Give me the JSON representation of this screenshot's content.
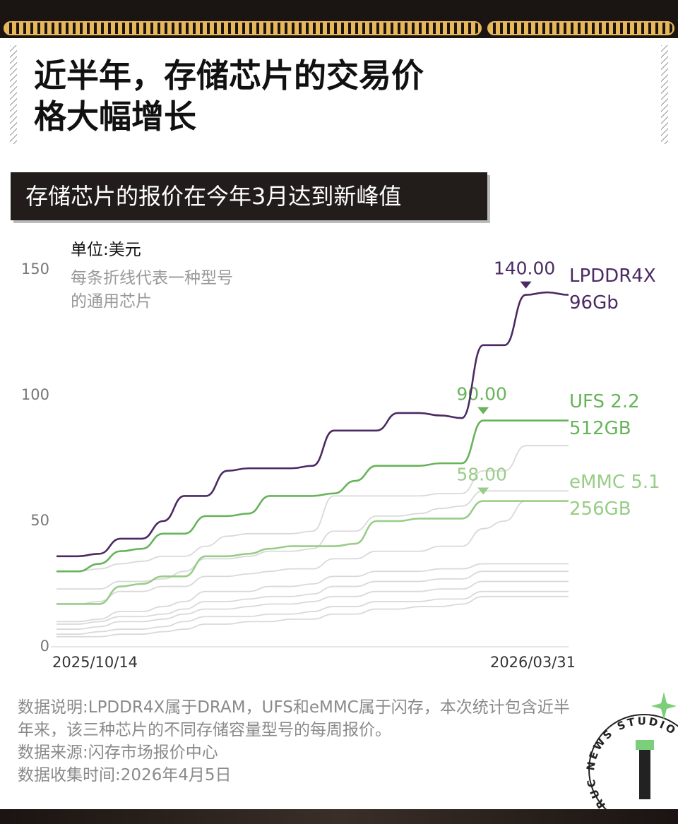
{
  "header": {
    "title": "近半年，存储芯片的交易价格大幅增长",
    "subtitle": "存储芯片的报价在今年3月达到新峰值"
  },
  "chart_data": {
    "type": "line",
    "unit": "单位:美元",
    "annotation": "每条折线代表一种型号的通用芯片",
    "categories": [
      "2025/10/14",
      null,
      null,
      null,
      null,
      null,
      null,
      null,
      null,
      null,
      null,
      null,
      null,
      null,
      null,
      null,
      null,
      null,
      null,
      null,
      null,
      null,
      null,
      null,
      "2026/03/31"
    ],
    "ylim": [
      0,
      150
    ],
    "yticks": [
      0,
      50,
      100,
      150
    ],
    "grid": false,
    "series": [
      {
        "color": "#d9d9d9",
        "values": [
          30,
          30,
          31,
          33,
          34,
          36,
          36,
          40,
          44,
          45,
          45,
          45,
          46,
          60,
          60,
          60,
          60,
          60,
          61,
          61,
          70,
          70,
          80,
          80,
          80
        ]
      },
      {
        "color": "#d9d9d9",
        "values": [
          23,
          23,
          23,
          26,
          26,
          27,
          30,
          35,
          35,
          36,
          38,
          38,
          39,
          46,
          46,
          52,
          52,
          53,
          55,
          56,
          62,
          62,
          62,
          62,
          62
        ]
      },
      {
        "color": "#d9d9d9",
        "values": [
          17,
          17,
          18,
          22,
          22,
          24,
          24,
          28,
          28,
          29,
          30,
          31,
          31,
          35,
          35,
          38,
          38,
          38,
          40,
          40,
          47,
          50,
          58,
          58,
          58
        ]
      },
      {
        "color": "#d9d9d9",
        "values": [
          10,
          10,
          11,
          14,
          14,
          16,
          18,
          22,
          22,
          22,
          24,
          24,
          25,
          28,
          28,
          30,
          30,
          30,
          31,
          31,
          33,
          33,
          33,
          33,
          33
        ]
      },
      {
        "color": "#d9d9d9",
        "values": [
          9,
          9,
          10,
          12,
          12,
          13,
          15,
          18,
          18,
          19,
          20,
          20,
          21,
          24,
          24,
          26,
          26,
          26,
          27,
          27,
          30,
          30,
          30,
          30,
          30
        ]
      },
      {
        "color": "#d9d9d9",
        "values": [
          7,
          7,
          8,
          10,
          10,
          11,
          13,
          15,
          15,
          16,
          17,
          17,
          18,
          20,
          20,
          22,
          22,
          22,
          23,
          23,
          26,
          26,
          26,
          26,
          26
        ]
      },
      {
        "color": "#d9d9d9",
        "values": [
          5,
          5,
          6,
          7,
          7,
          8,
          10,
          12,
          12,
          12,
          13,
          13,
          14,
          16,
          16,
          18,
          18,
          18,
          19,
          19,
          22,
          22,
          22,
          22,
          22
        ]
      },
      {
        "color": "#d9d9d9",
        "values": [
          4,
          4,
          4,
          5,
          5,
          6,
          7,
          9,
          9,
          10,
          10,
          11,
          11,
          13,
          13,
          15,
          15,
          16,
          16,
          17,
          20,
          20,
          20,
          20,
          20
        ]
      },
      {
        "name": "eMMC 5.1\n256GB",
        "color": "#98cd87",
        "values": [
          17,
          17,
          17,
          24,
          25,
          28,
          28,
          36,
          36,
          37,
          39,
          40,
          40,
          40,
          41,
          50,
          50,
          51,
          51,
          51,
          58,
          58,
          58,
          58,
          58
        ],
        "value_labels": [
          null,
          null,
          null,
          null,
          null,
          null,
          null,
          null,
          null,
          null,
          null,
          null,
          null,
          null,
          null,
          null,
          null,
          null,
          null,
          null,
          "58.00",
          null,
          null,
          null,
          null
        ]
      },
      {
        "name": "UFS 2.2\n512GB",
        "color": "#67b35a",
        "values": [
          30,
          30,
          33,
          38,
          39,
          45,
          45,
          52,
          52,
          53,
          60,
          60,
          60,
          61,
          66,
          72,
          72,
          72,
          73,
          73,
          90,
          90,
          90,
          90,
          90
        ],
        "value_labels": [
          null,
          null,
          null,
          null,
          null,
          null,
          null,
          null,
          null,
          null,
          null,
          null,
          null,
          null,
          null,
          null,
          null,
          null,
          null,
          null,
          "90.00",
          null,
          null,
          null,
          null
        ]
      },
      {
        "name": "LPDDR4X\n96Gb",
        "color": "#4b2a63",
        "values": [
          36,
          36,
          37,
          43,
          43,
          50,
          60,
          60,
          70,
          71,
          71,
          71,
          72,
          86,
          86,
          86,
          93,
          93,
          92,
          91,
          120,
          120,
          140,
          141,
          140
        ],
        "value_labels": [
          null,
          null,
          null,
          null,
          null,
          null,
          null,
          null,
          null,
          null,
          null,
          null,
          null,
          null,
          null,
          null,
          null,
          null,
          null,
          null,
          null,
          null,
          "140.00",
          null,
          null
        ]
      }
    ]
  },
  "notes": [
    "数据说明:LPDDR4X属于DRAM，UFS和eMMC属于闪存，本次统计包含近半年来，该三种芯片的不同存储容量型号的每周报价。",
    "数据来源:闪存市场报价中心",
    "数据收集时间:2026年4月5日"
  ],
  "logo": "RUC NEWS STUDIO"
}
